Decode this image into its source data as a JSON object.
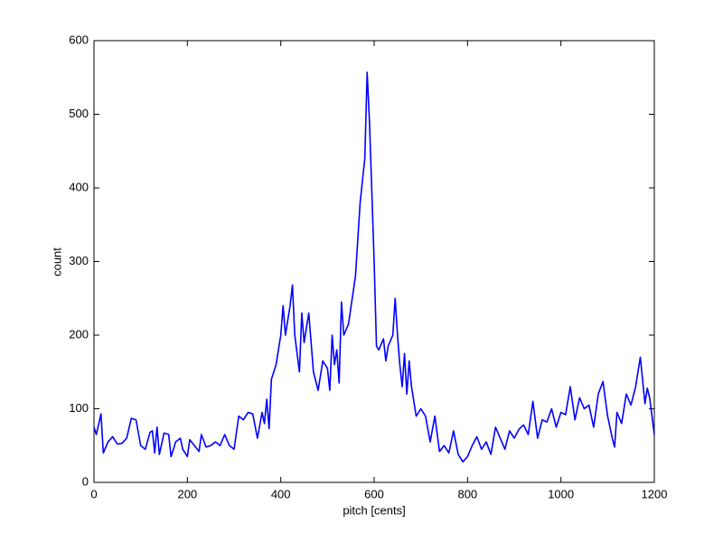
{
  "chart_data": {
    "type": "line",
    "xlabel": "pitch [cents]",
    "ylabel": "count",
    "x": [
      0,
      5,
      15,
      20,
      30,
      40,
      50,
      60,
      70,
      80,
      90,
      100,
      110,
      120,
      125,
      130,
      135,
      140,
      150,
      160,
      165,
      175,
      185,
      190,
      200,
      205,
      215,
      225,
      230,
      240,
      250,
      260,
      270,
      280,
      290,
      300,
      310,
      320,
      330,
      340,
      350,
      360,
      365,
      370,
      375,
      380,
      390,
      400,
      405,
      410,
      420,
      425,
      430,
      440,
      445,
      450,
      460,
      470,
      480,
      490,
      500,
      505,
      510,
      515,
      520,
      525,
      530,
      535,
      545,
      560,
      570,
      580,
      585,
      590,
      600,
      605,
      610,
      620,
      625,
      630,
      640,
      645,
      650,
      655,
      660,
      665,
      670,
      675,
      680,
      690,
      700,
      710,
      720,
      730,
      740,
      750,
      760,
      770,
      780,
      790,
      800,
      810,
      820,
      830,
      840,
      850,
      860,
      870,
      880,
      890,
      900,
      910,
      920,
      930,
      940,
      950,
      960,
      970,
      980,
      990,
      1000,
      1010,
      1020,
      1030,
      1040,
      1050,
      1060,
      1070,
      1080,
      1090,
      1100,
      1110,
      1115,
      1120,
      1130,
      1140,
      1150,
      1160,
      1170,
      1180,
      1185,
      1190,
      1200
    ],
    "values": [
      75,
      65,
      93,
      40,
      55,
      62,
      52,
      53,
      60,
      87,
      85,
      50,
      45,
      68,
      70,
      40,
      75,
      38,
      67,
      65,
      35,
      55,
      60,
      45,
      35,
      58,
      50,
      42,
      65,
      48,
      50,
      55,
      50,
      65,
      50,
      45,
      90,
      85,
      95,
      93,
      60,
      95,
      80,
      113,
      73,
      140,
      160,
      200,
      240,
      200,
      240,
      268,
      200,
      150,
      230,
      190,
      230,
      150,
      125,
      165,
      155,
      125,
      200,
      160,
      180,
      135,
      245,
      200,
      215,
      280,
      380,
      440,
      557,
      490,
      300,
      185,
      180,
      195,
      165,
      185,
      200,
      250,
      200,
      160,
      130,
      175,
      120,
      165,
      130,
      90,
      100,
      90,
      55,
      90,
      42,
      50,
      40,
      70,
      38,
      28,
      35,
      50,
      62,
      45,
      55,
      38,
      75,
      60,
      45,
      70,
      60,
      72,
      78,
      65,
      110,
      60,
      85,
      82,
      100,
      75,
      95,
      92,
      130,
      85,
      115,
      100,
      105,
      75,
      120,
      137,
      90,
      60,
      48,
      95,
      80,
      120,
      105,
      130,
      170,
      107,
      128,
      115,
      65
    ],
    "color": "#0000ff",
    "xlim": [
      0,
      1200
    ],
    "xticks": [
      0,
      200,
      400,
      600,
      800,
      1000,
      1200
    ],
    "ylim": [
      0,
      600
    ],
    "yticks": [
      0,
      100,
      200,
      300,
      400,
      500,
      600
    ]
  }
}
